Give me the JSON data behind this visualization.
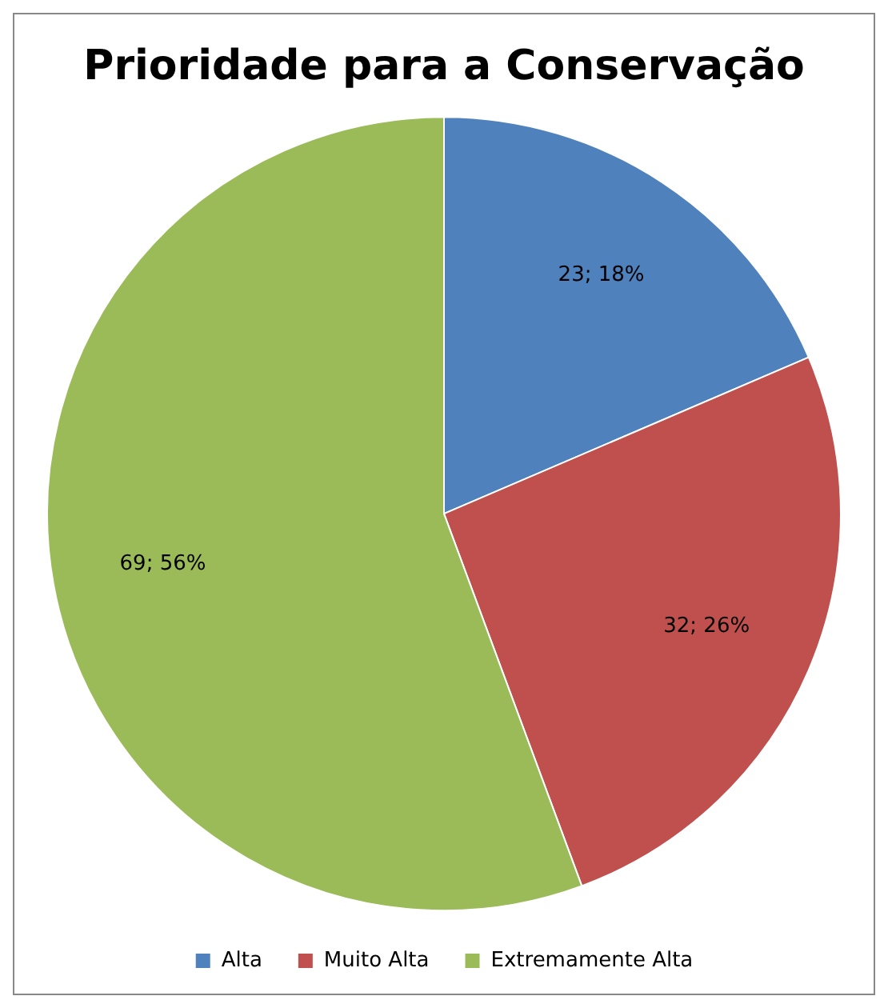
{
  "chart_data": {
    "type": "pie",
    "title": "Prioridade para a Conservação",
    "categories": [
      "Alta",
      "Muito Alta",
      "Extremamente Alta"
    ],
    "values": [
      23,
      32,
      69
    ],
    "colors": [
      "#4f81bd",
      "#c0504d",
      "#9bbb59"
    ],
    "value_labels": [
      "23; 18%",
      "32; 26%",
      "69; 56%"
    ],
    "legend": "bottom"
  }
}
